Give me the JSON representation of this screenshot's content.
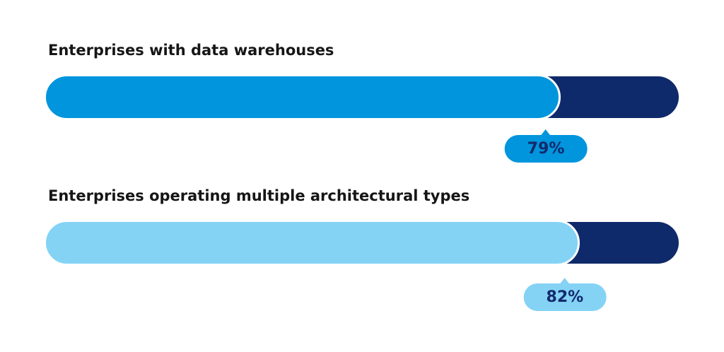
{
  "page": {
    "background": "#ffffff"
  },
  "colors": {
    "title_text": "#161616",
    "track_navy": "#0F2A6B",
    "separator_stroke": "#ffffff"
  },
  "chart_data": {
    "type": "bar",
    "orientation": "horizontal",
    "unit": "%",
    "xlim": [
      0,
      100
    ],
    "grid": false,
    "legend": false,
    "bars": [
      {
        "label": "Enterprises with data warehouses",
        "value": 79,
        "value_label": "79%",
        "fill_color": "#0095DC",
        "track_color": "#0F2A6B",
        "badge_color": "#0095DC",
        "badge_text_color": "#132A6C"
      },
      {
        "label": "Enterprises operating multiple architectural types",
        "value": 82,
        "value_label": "82%",
        "fill_color": "#84D3F5",
        "track_color": "#0F2A6B",
        "badge_color": "#84D3F5",
        "badge_text_color": "#132A6C"
      }
    ]
  }
}
